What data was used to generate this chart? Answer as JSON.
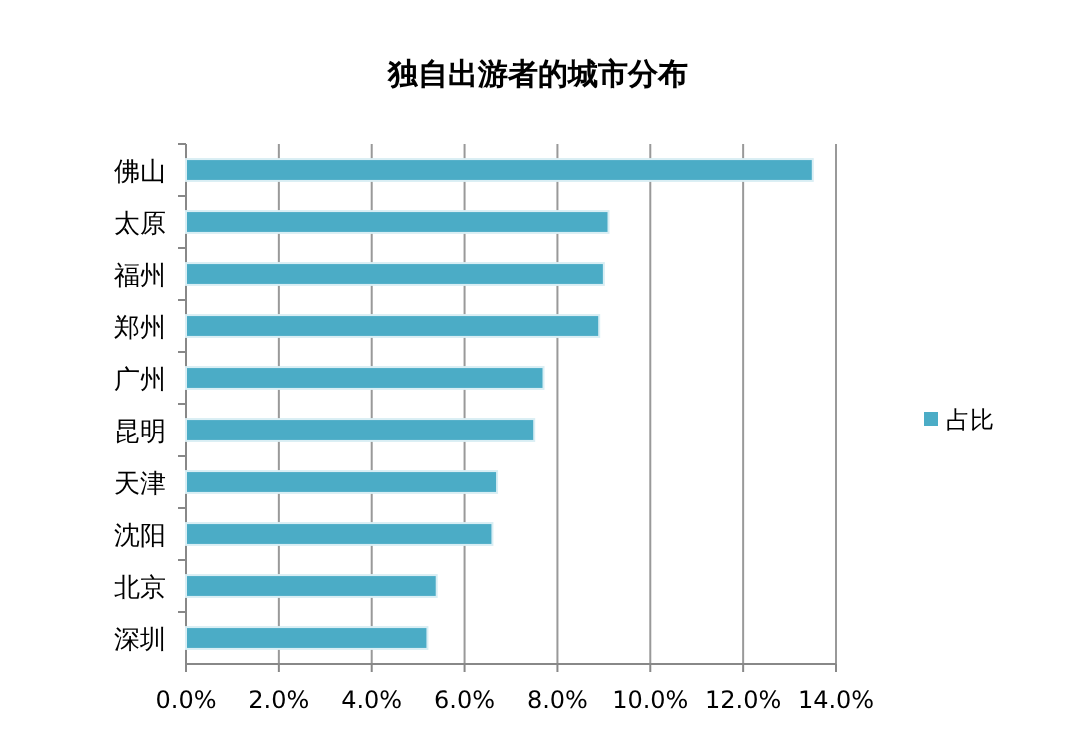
{
  "chart_data": {
    "type": "bar",
    "orientation": "horizontal",
    "title": "独自出游者的城市分布",
    "categories": [
      "佛山",
      "太原",
      "福州",
      "郑州",
      "广州",
      "昆明",
      "天津",
      "沈阳",
      "北京",
      "深圳"
    ],
    "series": [
      {
        "name": "占比",
        "color": "#4bacc6",
        "values": [
          13.5,
          9.1,
          9.0,
          8.9,
          7.7,
          7.5,
          6.7,
          6.6,
          5.4,
          5.2
        ]
      }
    ],
    "xlim": [
      0,
      14
    ],
    "xticks": [
      {
        "value": 0,
        "label": "0.0%"
      },
      {
        "value": 2,
        "label": "2.0%"
      },
      {
        "value": 4,
        "label": "4.0%"
      },
      {
        "value": 6,
        "label": "6.0%"
      },
      {
        "value": 8,
        "label": "8.0%"
      },
      {
        "value": 10,
        "label": "10.0%"
      },
      {
        "value": 12,
        "label": "12.0%"
      },
      {
        "value": 14,
        "label": "14.0%"
      }
    ],
    "grid": "x",
    "legend": "right"
  }
}
